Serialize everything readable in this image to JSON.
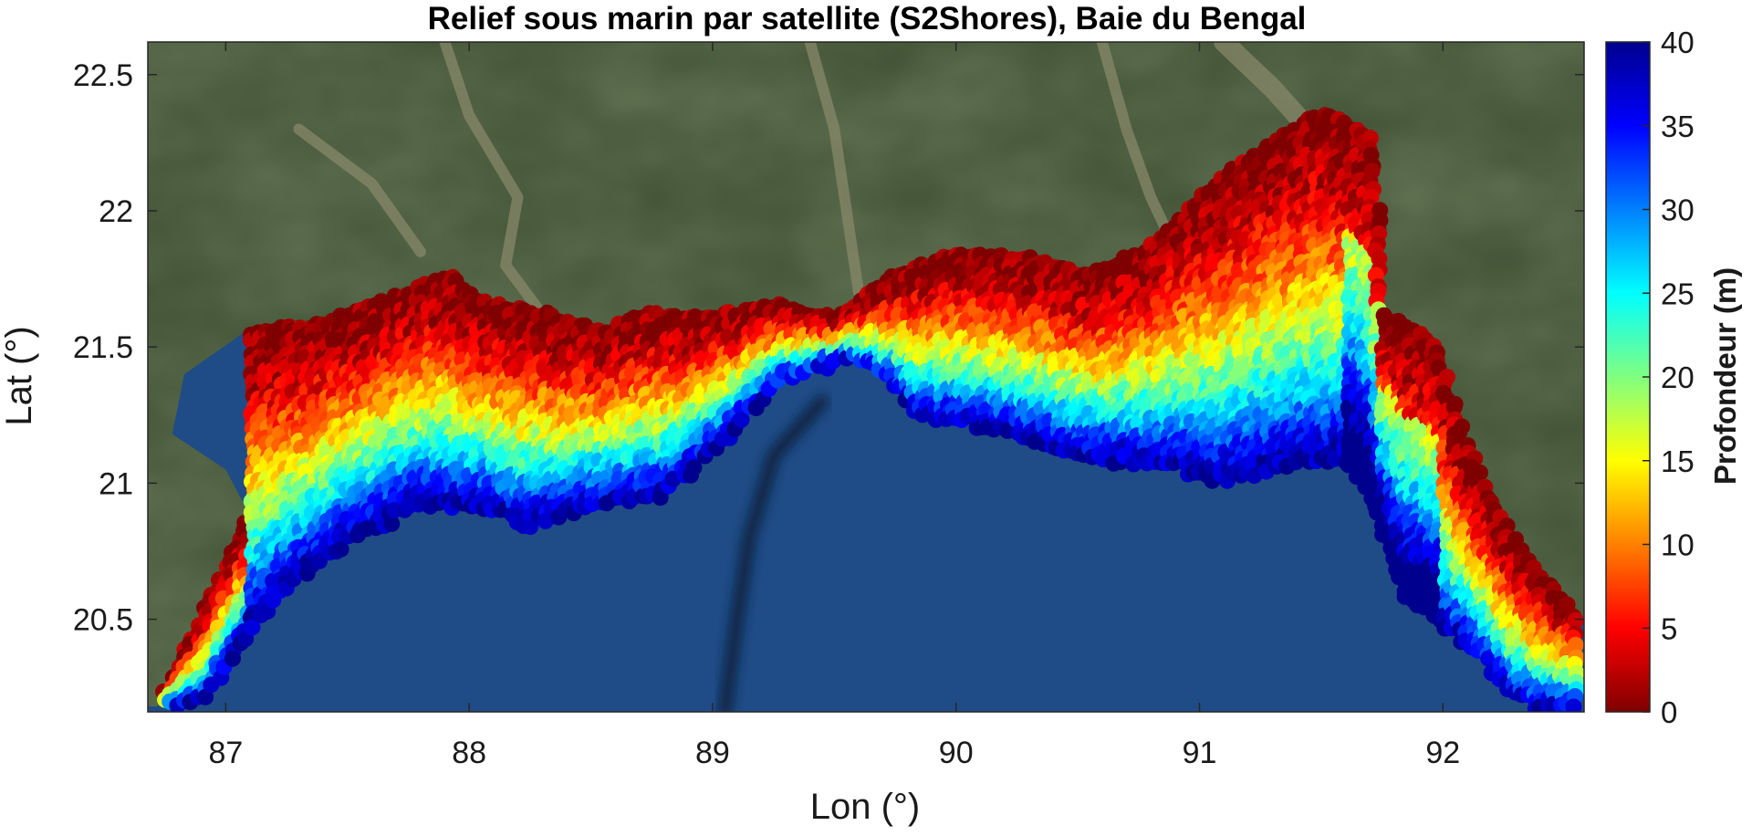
{
  "chart_data": {
    "type": "heatmap",
    "title": "Relief sous marin par satellite (S2Shores), Baie du Bengal",
    "xlabel": "Lon (°)",
    "ylabel": "Lat (°)",
    "xlim": [
      86.68,
      92.58
    ],
    "ylim": [
      20.16,
      22.62
    ],
    "x_ticks": [
      87,
      88,
      89,
      90,
      91,
      92
    ],
    "y_ticks": [
      20.5,
      21,
      21.5,
      22,
      22.5
    ],
    "x_tick_labels": [
      "87",
      "88",
      "89",
      "90",
      "91",
      "92"
    ],
    "y_tick_labels": [
      "20.5",
      "21",
      "21.5",
      "22",
      "22.5"
    ],
    "colorbar": {
      "label": "Profondeur  (m)",
      "range": [
        0,
        40
      ],
      "ticks": [
        0,
        5,
        10,
        15,
        20,
        25,
        30,
        35,
        40
      ],
      "tick_labels": [
        "0",
        "5",
        "10",
        "15",
        "20",
        "25",
        "30",
        "35",
        "40"
      ],
      "colormap": "jet_reversed",
      "colors": [
        "#7f0000",
        "#ff0000",
        "#ff8000",
        "#ffff00",
        "#80ff80",
        "#00ffff",
        "#0080ff",
        "#0000ff",
        "#00008f"
      ]
    },
    "background": "satellite imagery (land green/brown, sea dark blue)",
    "land_color": "#3f4f33",
    "sea_color": "#1f4c86",
    "coast": [
      [
        86.72,
        20.18
      ],
      [
        86.95,
        20.6
      ],
      [
        87.1,
        20.88
      ],
      [
        87.0,
        21.05
      ],
      [
        86.78,
        21.18
      ],
      [
        86.83,
        21.4
      ],
      [
        87.07,
        21.55
      ],
      [
        87.4,
        21.58
      ],
      [
        87.7,
        21.68
      ],
      [
        87.92,
        21.76
      ],
      [
        88.05,
        21.66
      ],
      [
        88.3,
        21.62
      ],
      [
        88.55,
        21.55
      ],
      [
        88.72,
        21.62
      ],
      [
        88.95,
        21.6
      ],
      [
        89.25,
        21.65
      ],
      [
        89.5,
        21.6
      ],
      [
        89.75,
        21.76
      ],
      [
        90.0,
        21.84
      ],
      [
        90.3,
        21.82
      ],
      [
        90.55,
        21.76
      ],
      [
        90.8,
        21.86
      ],
      [
        91.0,
        22.05
      ],
      [
        91.25,
        22.22
      ],
      [
        91.5,
        22.36
      ],
      [
        91.72,
        22.25
      ],
      [
        91.75,
        21.62
      ],
      [
        91.98,
        21.5
      ],
      [
        92.07,
        21.2
      ],
      [
        92.22,
        20.9
      ],
      [
        92.38,
        20.68
      ],
      [
        92.58,
        20.48
      ],
      [
        92.58,
        20.16
      ]
    ],
    "shelf_edge": [
      [
        86.68,
        20.16
      ],
      [
        86.92,
        20.2
      ],
      [
        87.1,
        20.45
      ],
      [
        87.25,
        20.6
      ],
      [
        87.5,
        20.78
      ],
      [
        87.8,
        20.92
      ],
      [
        88.05,
        20.9
      ],
      [
        88.25,
        20.84
      ],
      [
        88.5,
        20.9
      ],
      [
        88.8,
        20.95
      ],
      [
        89.05,
        21.15
      ],
      [
        89.3,
        21.38
      ],
      [
        89.55,
        21.45
      ],
      [
        89.72,
        21.38
      ],
      [
        89.85,
        21.24
      ],
      [
        90.1,
        21.2
      ],
      [
        90.35,
        21.14
      ],
      [
        90.6,
        21.08
      ],
      [
        90.9,
        21.05
      ],
      [
        91.1,
        21.0
      ],
      [
        91.35,
        21.05
      ],
      [
        91.6,
        21.08
      ],
      [
        91.72,
        20.9
      ],
      [
        91.85,
        20.55
      ],
      [
        91.95,
        20.5
      ],
      [
        92.1,
        20.4
      ],
      [
        92.3,
        20.2
      ],
      [
        92.42,
        20.16
      ]
    ]
  }
}
